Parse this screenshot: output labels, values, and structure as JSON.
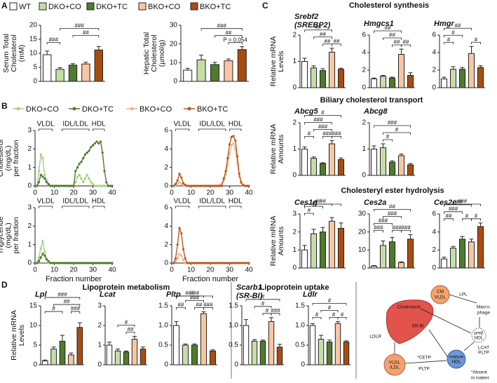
{
  "panels": [
    "A",
    "B",
    "C",
    "D"
  ],
  "groups": [
    {
      "name": "WT",
      "color": "#ffffff"
    },
    {
      "name": "DKO+CO",
      "color": "#c5dea8"
    },
    {
      "name": "DKO+TC",
      "color": "#4f7b2c"
    },
    {
      "name": "BKO+CO",
      "color": "#f9c6a3"
    },
    {
      "name": "BKO+TC",
      "color": "#a84d12"
    }
  ],
  "sections": [
    "Cholesterol synthesis",
    "Biliary cholesterol transport",
    "Cholesteryl ester hydrolysis",
    "Lipoprotein metabolism",
    "Lipoprotein uptake"
  ],
  "diagram": {
    "cm": [
      "CM",
      "VLDL"
    ],
    "lpl": "LPL",
    "macrophage": [
      "Macro-",
      "phage"
    ],
    "cholesterol": "Cholesterol",
    "srbi": "SR-BI",
    "ldlr": "LDLR",
    "pre_hdl": [
      "preβ",
      "HDL"
    ],
    "mature_hdl": [
      "mature",
      "HDL"
    ],
    "lcat_pltp": [
      "LCAT",
      "PLTP"
    ],
    "vldl_ldl": [
      "VLDL",
      "/LDL"
    ],
    "cetp": "*CETP",
    "pltp": "PLTP",
    "footnote": [
      "*Absent",
      "in rodent"
    ]
  },
  "chart_data": [
    {
      "type": "bar",
      "ylabel": [
        "Serum Total",
        "Cholesterol",
        "(mM)"
      ],
      "values": [
        9.5,
        4.3,
        5.8,
        6.2,
        11.2
      ],
      "errors": [
        1.3,
        0.6,
        0.5,
        0.6,
        1.2
      ],
      "ylim": [
        0,
        20
      ],
      "yticks": [
        0,
        5,
        10,
        15,
        20
      ],
      "annotations": [
        "###",
        "##",
        "###"
      ]
    },
    {
      "type": "bar",
      "ylabel": [
        "Hepatic Total",
        "Cholesterol",
        "(µmol/g)"
      ],
      "values": [
        6,
        11.5,
        9,
        11,
        17
      ],
      "errors": [
        1,
        2.5,
        1.2,
        1,
        1.5
      ],
      "ylim": [
        0,
        30
      ],
      "yticks": [
        0,
        10,
        20,
        30
      ],
      "annotations": [
        "###",
        "##",
        "P = 0.054"
      ]
    },
    {
      "type": "line",
      "ylabel": [
        "Cholesterol",
        "(mg/dL)",
        "per fraction"
      ],
      "regions": [
        "VLDL",
        "IDL/LDL",
        "HDL"
      ],
      "xlim": [
        0,
        40
      ],
      "xticks": [
        0,
        10,
        20,
        30,
        40
      ],
      "ylim": [
        0,
        3
      ],
      "yticks": [
        0,
        1,
        2,
        3
      ],
      "x": [
        1,
        2,
        3,
        4,
        5,
        6,
        7,
        8,
        9,
        10,
        11,
        12,
        13,
        14,
        15,
        16,
        17,
        18,
        19,
        20,
        21,
        22,
        23,
        24,
        25,
        26,
        27,
        28,
        29,
        30,
        31,
        32,
        33,
        34,
        35,
        36,
        37,
        38,
        39,
        40
      ],
      "series": [
        {
          "name": "DKO+CO",
          "color": "#a6cf86",
          "values": [
            0,
            0.8,
            1.7,
            1.5,
            0.6,
            0.3,
            0.1,
            0,
            0,
            0,
            0,
            0,
            0,
            0,
            0,
            0,
            0,
            0,
            0,
            0,
            0.2,
            0.5,
            0.6,
            0.4,
            0.2,
            0.4,
            0.6,
            0.4,
            0.2,
            0.1,
            0,
            0,
            0,
            0,
            0,
            0,
            0,
            0,
            0,
            0
          ]
        },
        {
          "name": "DKO+TC",
          "color": "#4f7b2c",
          "values": [
            0,
            0.2,
            0.6,
            0.5,
            0.4,
            0.2,
            0.1,
            0,
            0,
            0,
            0,
            0,
            0,
            0,
            0,
            0,
            0,
            0,
            0,
            0,
            0.8,
            1.0,
            1.2,
            1.3,
            1.5,
            1.7,
            1.8,
            1.9,
            2.1,
            2.2,
            2.3,
            2.4,
            2.3,
            2.4,
            1.8,
            0.8,
            0.2,
            0,
            0,
            0
          ]
        }
      ]
    },
    {
      "type": "line",
      "regions": [
        "VLDL",
        "IDL/LDL",
        "HDL"
      ],
      "xlim": [
        0,
        40
      ],
      "xticks": [
        0,
        10,
        20,
        30,
        40
      ],
      "ylim": [
        0,
        6
      ],
      "yticks": [
        0,
        2,
        4,
        6
      ],
      "x": [
        1,
        2,
        3,
        4,
        5,
        6,
        7,
        8,
        9,
        10,
        11,
        12,
        13,
        14,
        15,
        16,
        17,
        18,
        19,
        20,
        21,
        22,
        23,
        24,
        25,
        26,
        27,
        28,
        29,
        30,
        31,
        32,
        33,
        34,
        35,
        36,
        37,
        38,
        39,
        40
      ],
      "series": [
        {
          "name": "BKO+CO",
          "color": "#f3b48a",
          "values": [
            0,
            0.1,
            0.3,
            0.4,
            0.2,
            0.1,
            0,
            0,
            0,
            0,
            0,
            0,
            0,
            0,
            0,
            0,
            0,
            0,
            0,
            0,
            0,
            0,
            0,
            0,
            0.1,
            0.3,
            0.6,
            1.2,
            2.2,
            3.5,
            4.4,
            4.6,
            4.0,
            2.5,
            1.0,
            0.3,
            0.1,
            0,
            0,
            0
          ]
        },
        {
          "name": "BKO+TC",
          "color": "#b35a1f",
          "values": [
            0,
            0.2,
            0.6,
            1.3,
            0.9,
            0.3,
            0.1,
            0,
            0,
            0,
            0,
            0,
            0,
            0,
            0,
            0,
            0,
            0,
            0,
            0,
            0,
            0,
            0,
            0,
            0,
            0,
            0.8,
            1.6,
            3.0,
            4.5,
            5.3,
            5.4,
            4.9,
            3.2,
            1.3,
            0.4,
            0.1,
            0,
            0,
            0
          ]
        }
      ]
    },
    {
      "type": "line",
      "ylabel": [
        "Triglyceride",
        "(mg/dL)",
        "per fraction"
      ],
      "xlabel": "Fraction number",
      "regions": [
        "VLDL",
        "IDL/LDL",
        "HDL"
      ],
      "xlim": [
        0,
        40
      ],
      "xticks": [
        0,
        10,
        20,
        30,
        40
      ],
      "ylim": [
        0,
        3
      ],
      "yticks": [
        0,
        1,
        2,
        3
      ],
      "x": [
        1,
        2,
        3,
        4,
        5,
        6,
        7,
        8,
        9,
        10,
        11,
        12,
        13,
        14,
        15,
        16,
        17,
        18,
        19,
        20,
        21,
        22,
        23,
        24,
        25,
        26,
        27,
        28,
        29,
        30,
        31,
        32,
        33,
        34,
        35,
        36,
        37,
        38,
        39,
        40
      ],
      "series": [
        {
          "color": "#a6cf86",
          "values": [
            0,
            0.3,
            0.8,
            1.2,
            0.6,
            0.2,
            0,
            0,
            0,
            0,
            0,
            0,
            0,
            0,
            0,
            0,
            0,
            0,
            0,
            0,
            0,
            0,
            0,
            0,
            0,
            0,
            0,
            0,
            0,
            0,
            0,
            0,
            0,
            0,
            0,
            0,
            0,
            0,
            0,
            0
          ]
        },
        {
          "color": "#4f7b2c",
          "values": [
            0,
            0.1,
            0.3,
            0.5,
            0.4,
            0.2,
            0.1,
            0,
            0,
            0,
            0,
            0,
            0,
            0,
            0,
            0,
            0,
            0,
            0,
            0,
            0,
            0,
            0,
            0,
            0,
            0,
            0,
            0,
            0,
            0,
            0,
            0,
            0,
            0,
            0,
            0,
            0,
            0,
            0,
            0
          ]
        }
      ]
    },
    {
      "type": "line",
      "xlabel": "Fraction number",
      "regions": [
        "VLDL",
        "IDL/LDL",
        "HDL"
      ],
      "xlim": [
        0,
        40
      ],
      "xticks": [
        0,
        10,
        20,
        30,
        40
      ],
      "ylim": [
        0,
        6
      ],
      "yticks": [
        0,
        2,
        4,
        6
      ],
      "x": [
        1,
        2,
        3,
        4,
        5,
        6,
        7,
        8,
        9,
        10,
        11,
        12,
        13,
        14,
        15,
        16,
        17,
        18,
        19,
        20,
        21,
        22,
        23,
        24,
        25,
        26,
        27,
        28,
        29,
        30,
        31,
        32,
        33,
        34,
        35,
        36,
        37,
        38,
        39,
        40
      ],
      "series": [
        {
          "color": "#f3b48a",
          "values": [
            0,
            0.2,
            0.5,
            1.0,
            0.8,
            0.3,
            0,
            0,
            0,
            0,
            0,
            0,
            0,
            0,
            0,
            0,
            0,
            0,
            0,
            0,
            0,
            0,
            0,
            0,
            0,
            0,
            0,
            0,
            0,
            0,
            0,
            0,
            0,
            0,
            0,
            0,
            0,
            0,
            0,
            0
          ]
        },
        {
          "color": "#b35a1f",
          "values": [
            0,
            0.5,
            2.0,
            3.8,
            3.2,
            1.5,
            0.5,
            0,
            0,
            0,
            0,
            0,
            0,
            0,
            0,
            0,
            0,
            0,
            0,
            0,
            0,
            0,
            0,
            0,
            0,
            0,
            0,
            0,
            0,
            0,
            0,
            0,
            0,
            0,
            0,
            0,
            0,
            0,
            0,
            0
          ]
        }
      ]
    },
    {
      "type": "bar",
      "title": "Srebf2",
      "subtitle": "(SREBP2)",
      "ylabel": [
        "Relative mRNA",
        "Levels"
      ],
      "values": [
        1.0,
        0.75,
        0.65,
        1.35,
        0.7
      ],
      "errors": [
        0.12,
        0.08,
        0.07,
        0.15,
        0.04
      ],
      "ylim": [
        0,
        2
      ],
      "yticks": [
        0,
        1,
        2
      ],
      "annotations": [
        "##",
        "##",
        "##",
        "##"
      ]
    },
    {
      "type": "bar",
      "title": "Hmgcs1",
      "values": [
        1,
        1.3,
        1.1,
        3.8,
        1.4
      ],
      "errors": [
        0.1,
        0.1,
        0.1,
        0.6,
        0.3
      ],
      "ylim": [
        0,
        6
      ],
      "yticks": [
        0,
        2,
        4,
        6
      ],
      "annotations": [
        "##",
        "##",
        "##",
        "##"
      ]
    },
    {
      "type": "bar",
      "title": "Hmgr",
      "values": [
        1,
        2.1,
        2.1,
        3.9,
        2.3
      ],
      "errors": [
        0.2,
        0.3,
        0.2,
        0.8,
        0.2
      ],
      "ylim": [
        0,
        6
      ],
      "yticks": [
        0,
        2,
        4,
        6
      ],
      "annotations": [
        "##",
        "#",
        "#",
        "#"
      ]
    },
    {
      "type": "bar",
      "title": "Abcg5",
      "ylabel": [
        "Relative mRNA",
        "Amounts"
      ],
      "values": [
        1.0,
        0.65,
        0.45,
        1.2,
        0.6
      ],
      "errors": [
        0.08,
        0.05,
        0.03,
        0.12,
        0.06
      ],
      "ylim": [
        0,
        2
      ],
      "yticks": [
        0,
        1,
        2
      ],
      "annotations": [
        "#",
        "###",
        "###",
        "###",
        "#",
        "###"
      ]
    },
    {
      "type": "bar",
      "title": "Abcg8",
      "values": [
        1.0,
        1.05,
        0.5,
        0.75,
        0.4
      ],
      "errors": [
        0.12,
        0.15,
        0.05,
        0.06,
        0.05
      ],
      "ylim": [
        0,
        2
      ],
      "yticks": [
        0,
        1,
        2
      ],
      "annotations": [
        "###",
        "#",
        "#"
      ]
    },
    {
      "type": "bar",
      "title": "Ces1g",
      "ylabel": [
        "Relative mRNA",
        "Amounts"
      ],
      "values": [
        1,
        1.9,
        2.0,
        2.6,
        2.2
      ],
      "errors": [
        0.25,
        0.25,
        0.25,
        0.2,
        0.3
      ],
      "ylim": [
        0,
        3
      ],
      "yticks": [
        0,
        1,
        2,
        3
      ],
      "annotations": [
        "##",
        "##",
        "#",
        "#"
      ]
    },
    {
      "type": "bar",
      "title": "Ces2a",
      "values": [
        1,
        12.5,
        14.5,
        3,
        16
      ],
      "errors": [
        0.3,
        2.5,
        2.5,
        0.4,
        2.5
      ],
      "ylim": [
        0,
        30
      ],
      "yticks": [
        0,
        10,
        20,
        30
      ],
      "annotations": [
        "##",
        "###",
        "###",
        "###",
        "###",
        "###"
      ]
    },
    {
      "type": "bar",
      "title": "Ces2c",
      "values": [
        1,
        2.2,
        3.2,
        2.9,
        4.6
      ],
      "errors": [
        0.2,
        0.2,
        0.3,
        0.3,
        0.4
      ],
      "ylim": [
        0,
        6
      ],
      "yticks": [
        0,
        2,
        4,
        6
      ],
      "annotations": [
        "###",
        "###",
        "###",
        "#",
        "#",
        "##"
      ]
    },
    {
      "type": "bar",
      "title": "Lpl",
      "ylabel": [
        "Relative mRNA",
        "Levels"
      ],
      "values": [
        1,
        4,
        6,
        2.5,
        9.5
      ],
      "errors": [
        0.2,
        0.5,
        1.5,
        0.5,
        1.2
      ],
      "ylim": [
        0,
        15
      ],
      "yticks": [
        0,
        5,
        10,
        15
      ],
      "annotations": [
        "###",
        "##",
        "#",
        "###"
      ]
    },
    {
      "type": "bar",
      "title": "Lcat",
      "values": [
        1,
        0.7,
        0.65,
        1.3,
        0.8
      ],
      "errors": [
        0.15,
        0.1,
        0.05,
        0.15,
        0.1
      ],
      "ylim": [
        0,
        3
      ],
      "yticks": [
        0,
        1,
        2,
        3
      ],
      "annotations": [
        "#",
        "##"
      ]
    },
    {
      "type": "bar",
      "title": "Pltp",
      "values": [
        1.0,
        0.5,
        0.5,
        1.3,
        0.35
      ],
      "errors": [
        0.1,
        0.03,
        0.03,
        0.05,
        0.03
      ],
      "ylim": [
        0,
        1.5
      ],
      "yticks": [
        0,
        0.5,
        {
          "value": 1,
          "label": "1.0"
        },
        1.5
      ],
      "annotations": [
        "###",
        "###",
        "###",
        "##",
        "##",
        "###"
      ]
    },
    {
      "type": "bar",
      "title": "Scarb1",
      "subtitle": "(SR-BI)",
      "values": [
        1.0,
        0.6,
        0.6,
        1.1,
        0.45
      ],
      "errors": [
        0.15,
        0.04,
        0.03,
        0.1,
        0.07
      ],
      "ylim": [
        0,
        1.5
      ],
      "yticks": [
        0,
        0.5,
        {
          "value": 1,
          "label": "1.0"
        },
        1.5
      ],
      "annotations": [
        "#",
        "#",
        "###",
        "#"
      ]
    },
    {
      "type": "bar",
      "title": "Ldlr",
      "values": [
        1.0,
        0.65,
        0.58,
        1.05,
        0.58
      ],
      "errors": [
        0.05,
        0.1,
        0.05,
        0.05,
        0.03
      ],
      "ylim": [
        0,
        1.5
      ],
      "yticks": [
        0,
        0.5,
        {
          "value": 1,
          "label": "1.0"
        },
        1.5
      ],
      "annotations": [
        "#",
        "#",
        "#",
        "#",
        "#"
      ]
    }
  ]
}
